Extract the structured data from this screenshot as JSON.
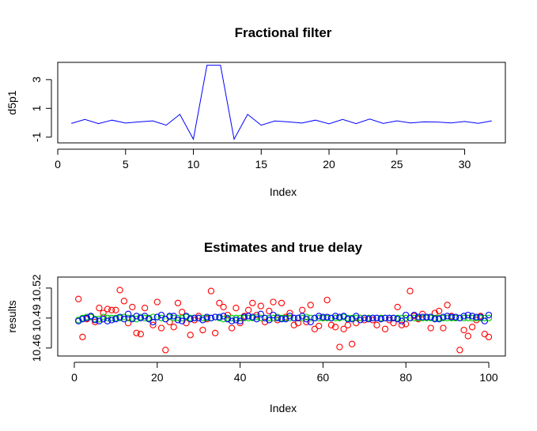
{
  "chart_data": [
    {
      "type": "line",
      "title": "Fractional filter",
      "xlabel": "Index",
      "ylabel": "d5p1",
      "xlim": [
        0,
        33
      ],
      "ylim": [
        -1.4,
        4.2
      ],
      "x_ticks": [
        0,
        5,
        10,
        15,
        20,
        25,
        30
      ],
      "y_ticks": [
        -1,
        1,
        3
      ],
      "grid": false,
      "color": "#0000ff",
      "x": [
        1,
        2,
        3,
        4,
        5,
        6,
        7,
        8,
        9,
        10,
        11,
        12,
        13,
        14,
        15,
        16,
        17,
        18,
        19,
        20,
        21,
        22,
        23,
        24,
        25,
        26,
        27,
        28,
        29,
        30,
        31,
        32
      ],
      "values": [
        -0.05,
        0.23,
        -0.06,
        0.18,
        -0.02,
        0.06,
        0.13,
        -0.17,
        0.58,
        -1.15,
        4.0,
        4.0,
        -1.15,
        0.58,
        -0.17,
        0.12,
        0.06,
        -0.02,
        0.18,
        -0.07,
        0.23,
        -0.06,
        0.26,
        -0.05,
        0.13,
        -0.01,
        0.06,
        0.05,
        -0.01,
        0.09,
        -0.04,
        0.13
      ]
    },
    {
      "type": "scatter",
      "title": "Estimates and true delay",
      "xlabel": "Index",
      "ylabel": "results",
      "xlim": [
        -4,
        104
      ],
      "ylim": [
        10.452,
        10.531
      ],
      "x_ticks": [
        0,
        20,
        40,
        60,
        80,
        100
      ],
      "y_ticks": [
        10.46,
        10.49,
        10.52
      ],
      "y_tick_labels": [
        "10.46",
        "10.49",
        "10.52"
      ],
      "grid": false,
      "series": [
        {
          "color": "#ff0000",
          "values": [
            10.509,
            10.471,
            10.489,
            10.491,
            10.486,
            10.5,
            10.495,
            10.499,
            10.498,
            10.498,
            10.518,
            10.507,
            10.485,
            10.501,
            10.475,
            10.474,
            10.5,
            10.49,
            10.483,
            10.506,
            10.48,
            10.458,
            10.486,
            10.481,
            10.505,
            10.496,
            10.485,
            10.473,
            10.488,
            10.492,
            10.478,
            10.489,
            10.517,
            10.475,
            10.505,
            10.501,
            10.493,
            10.48,
            10.5,
            10.485,
            10.492,
            10.498,
            10.505,
            10.493,
            10.502,
            10.486,
            10.497,
            10.506,
            10.488,
            10.505,
            10.491,
            10.495,
            10.483,
            10.485,
            10.498,
            10.486,
            10.503,
            10.479,
            10.482,
            10.49,
            10.508,
            10.483,
            10.481,
            10.461,
            10.479,
            10.483,
            10.464,
            10.485,
            10.49,
            10.488,
            10.49,
            10.488,
            10.483,
            10.49,
            10.479,
            10.488,
            10.485,
            10.501,
            10.483,
            10.484,
            10.517,
            10.492,
            10.489,
            10.494,
            10.491,
            10.48,
            10.495,
            10.497,
            10.48,
            10.503,
            10.492,
            10.49,
            10.458,
            10.478,
            10.472,
            10.481,
            10.488,
            10.492,
            10.474,
            10.471
          ]
        },
        {
          "color": "#00cd00",
          "values": [
            10.488,
            10.49,
            10.491,
            10.491,
            10.489,
            10.489,
            10.491,
            10.49,
            10.49,
            10.49,
            10.49,
            10.491,
            10.49,
            10.49,
            10.489,
            10.491,
            10.49,
            10.49,
            10.491,
            10.491,
            10.49,
            10.489,
            10.491,
            10.49,
            10.49,
            10.49,
            10.491,
            10.49,
            10.49,
            10.49,
            10.49,
            10.49,
            10.49,
            10.491,
            10.49,
            10.489,
            10.49,
            10.49,
            10.49,
            10.49,
            10.49,
            10.49,
            10.49,
            10.491,
            10.49,
            10.49,
            10.49,
            10.49,
            10.491,
            10.49,
            10.49,
            10.49,
            10.49,
            10.49,
            10.49,
            10.491,
            10.49,
            10.49,
            10.49,
            10.49,
            10.49,
            10.49,
            10.49,
            10.49,
            10.491,
            10.49,
            10.49,
            10.49,
            10.49,
            10.49,
            10.49,
            10.49,
            10.49,
            10.49,
            10.49,
            10.49,
            10.49,
            10.49,
            10.49,
            10.49,
            10.49,
            10.49,
            10.49,
            10.49,
            10.49,
            10.49,
            10.49,
            10.49,
            10.49,
            10.49,
            10.49,
            10.49,
            10.49,
            10.49,
            10.49,
            10.49,
            10.49,
            10.49,
            10.49,
            10.49
          ]
        },
        {
          "color": "#0000ff",
          "values": [
            10.487,
            10.489,
            10.49,
            10.492,
            10.488,
            10.487,
            10.489,
            10.487,
            10.488,
            10.489,
            10.491,
            10.489,
            10.494,
            10.489,
            10.492,
            10.49,
            10.492,
            10.489,
            10.486,
            10.491,
            10.493,
            10.489,
            10.492,
            10.492,
            10.488,
            10.487,
            10.492,
            10.489,
            10.49,
            10.49,
            10.488,
            10.491,
            10.49,
            10.491,
            10.491,
            10.492,
            10.489,
            10.487,
            10.488,
            10.487,
            10.491,
            10.492,
            10.491,
            10.489,
            10.494,
            10.49,
            10.488,
            10.493,
            10.49,
            10.489,
            10.489,
            10.492,
            10.49,
            10.49,
            10.492,
            10.489,
            10.486,
            10.49,
            10.492,
            10.491,
            10.491,
            10.49,
            10.492,
            10.491,
            10.492,
            10.489,
            10.489,
            10.492,
            10.488,
            10.49,
            10.489,
            10.49,
            10.49,
            10.489,
            10.49,
            10.49,
            10.49,
            10.489,
            10.487,
            10.493,
            10.49,
            10.493,
            10.491,
            10.491,
            10.491,
            10.491,
            10.489,
            10.489,
            10.491,
            10.492,
            10.491,
            10.491,
            10.49,
            10.492,
            10.493,
            10.492,
            10.491,
            10.491,
            10.487,
            10.493
          ]
        }
      ]
    }
  ]
}
